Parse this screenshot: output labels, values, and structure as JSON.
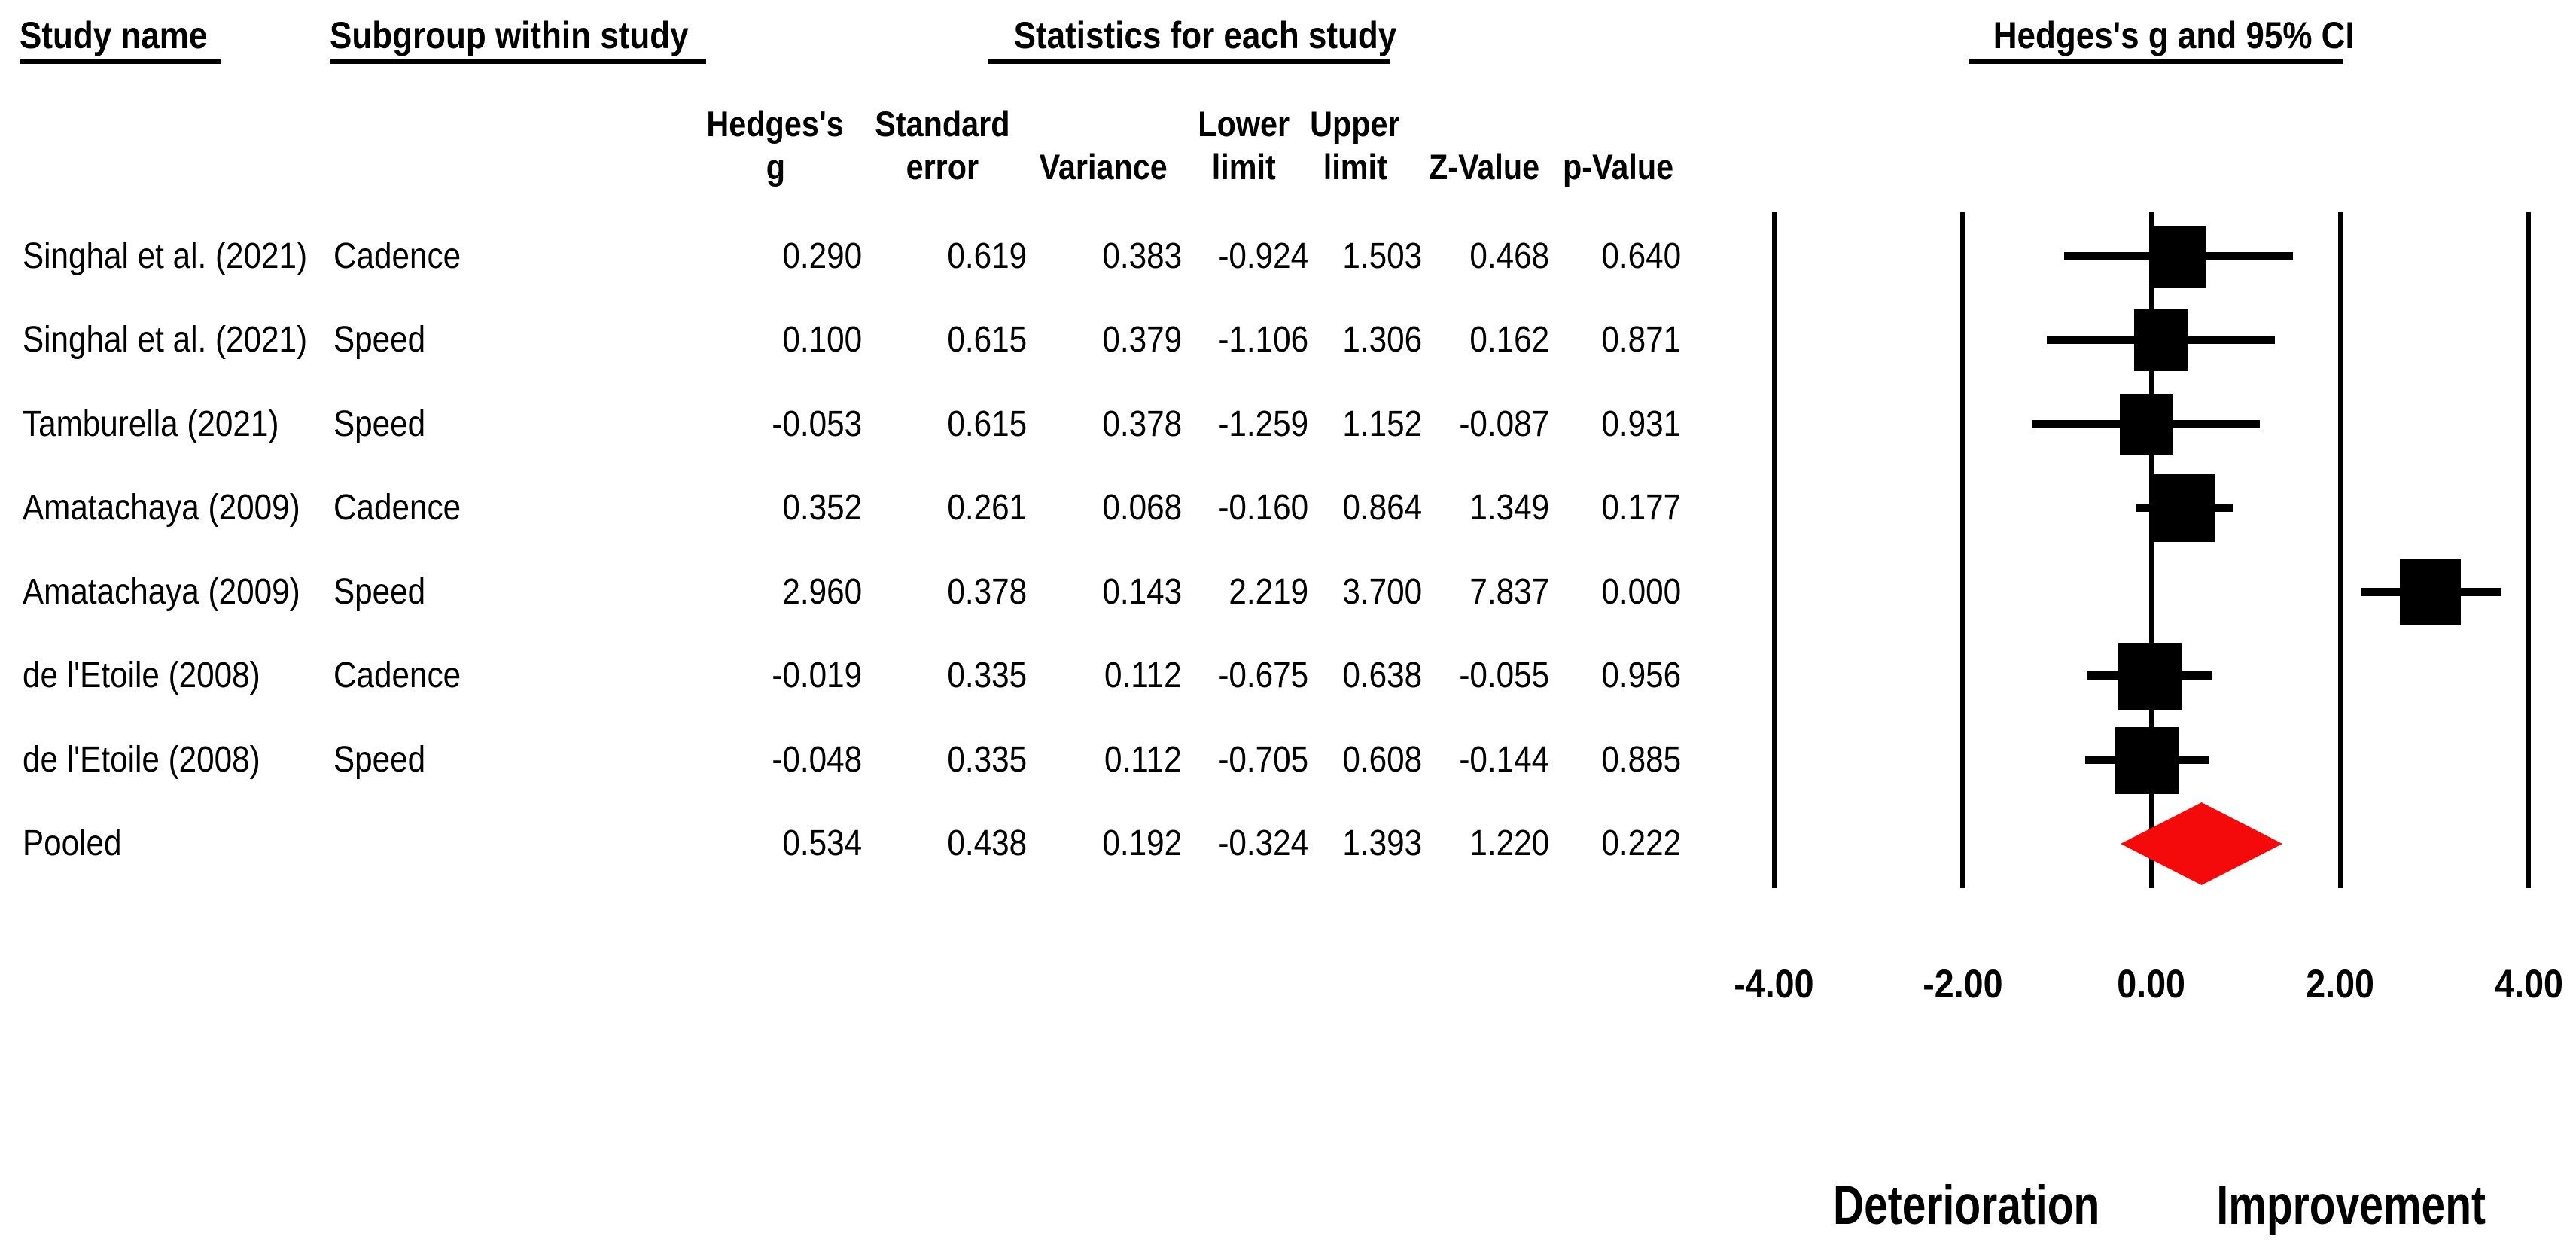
{
  "title_row": {
    "study_name": "Study name",
    "subgroup": "Subgroup within study",
    "statistics": "Statistics for each study",
    "plot": "Hedges's g and 95% CI"
  },
  "chart_data": {
    "type": "forest",
    "effect_measure": "Hedges's g",
    "column_headers": [
      {
        "top": "Hedges's",
        "bottom": "g"
      },
      {
        "top": "Standard",
        "bottom": "error"
      },
      {
        "top": "",
        "bottom": "Variance"
      },
      {
        "top": "Lower",
        "bottom": "limit"
      },
      {
        "top": "Upper",
        "bottom": "limit"
      },
      {
        "top": "",
        "bottom": "Z-Value"
      },
      {
        "top": "",
        "bottom": "p-Value"
      }
    ],
    "studies": [
      {
        "study": "Singhal et al. (2021)",
        "subgroup": "Cadence",
        "g": 0.29,
        "se": 0.619,
        "variance": 0.383,
        "lower": -0.924,
        "upper": 1.503,
        "z": 0.468,
        "p": 0.64,
        "pooled": false
      },
      {
        "study": "Singhal et al. (2021)",
        "subgroup": "Speed",
        "g": 0.1,
        "se": 0.615,
        "variance": 0.379,
        "lower": -1.106,
        "upper": 1.306,
        "z": 0.162,
        "p": 0.871,
        "pooled": false
      },
      {
        "study": "Tamburella (2021)",
        "subgroup": "Speed",
        "g": -0.053,
        "se": 0.615,
        "variance": 0.378,
        "lower": -1.259,
        "upper": 1.152,
        "z": -0.087,
        "p": 0.931,
        "pooled": false
      },
      {
        "study": "Amatachaya (2009)",
        "subgroup": "Cadence",
        "g": 0.352,
        "se": 0.261,
        "variance": 0.068,
        "lower": -0.16,
        "upper": 0.864,
        "z": 1.349,
        "p": 0.177,
        "pooled": false
      },
      {
        "study": "Amatachaya (2009)",
        "subgroup": "Speed",
        "g": 2.96,
        "se": 0.378,
        "variance": 0.143,
        "lower": 2.219,
        "upper": 3.7,
        "z": 7.837,
        "p": 0.0,
        "pooled": false
      },
      {
        "study": "de l'Etoile (2008)",
        "subgroup": "Cadence",
        "g": -0.019,
        "se": 0.335,
        "variance": 0.112,
        "lower": -0.675,
        "upper": 0.638,
        "z": -0.055,
        "p": 0.956,
        "pooled": false
      },
      {
        "study": "de l'Etoile (2008)",
        "subgroup": "Speed",
        "g": -0.048,
        "se": 0.335,
        "variance": 0.112,
        "lower": -0.705,
        "upper": 0.608,
        "z": -0.144,
        "p": 0.885,
        "pooled": false
      },
      {
        "study": "Pooled",
        "subgroup": "",
        "g": 0.534,
        "se": 0.438,
        "variance": 0.192,
        "lower": -0.324,
        "upper": 1.393,
        "z": 1.22,
        "p": 0.222,
        "pooled": true
      }
    ],
    "axis": {
      "min": -4,
      "max": 4,
      "ticks": [
        -4,
        -2,
        0,
        2,
        4
      ],
      "tick_labels": [
        "-4.00",
        "-2.00",
        "0.00",
        "2.00",
        "4.00"
      ]
    },
    "footer_labels": {
      "negative": "Deterioration",
      "positive": "Improvement"
    },
    "colors": {
      "text": "#000000",
      "marker": "#000000",
      "grid": "#000000",
      "pooled_diamond": "#F40A0A"
    }
  }
}
